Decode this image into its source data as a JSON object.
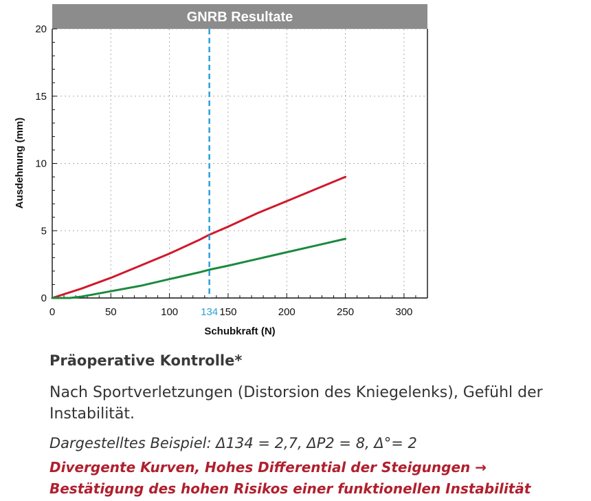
{
  "chart_data": {
    "type": "line",
    "title": "GNRB Resultate",
    "xlabel": "Schubkraft (N)",
    "ylabel": "Ausdehnung (mm)",
    "xlim": [
      0,
      320
    ],
    "ylim": [
      0,
      20
    ],
    "xticks": [
      0,
      50,
      100,
      150,
      200,
      250,
      300
    ],
    "yticks": [
      0,
      5,
      10,
      15,
      20
    ],
    "grid": true,
    "marker_line": {
      "x": 134,
      "label": "134",
      "color": "#2a9fd6"
    },
    "series": [
      {
        "color": "#d0192c",
        "x": [
          0,
          25,
          50,
          75,
          100,
          125,
          134,
          150,
          175,
          200,
          225,
          250
        ],
        "y": [
          0,
          0.7,
          1.5,
          2.4,
          3.3,
          4.3,
          4.7,
          5.3,
          6.3,
          7.2,
          8.1,
          9.0
        ]
      },
      {
        "color": "#1a8a3c",
        "x": [
          0,
          15,
          25,
          50,
          75,
          100,
          125,
          134,
          150,
          175,
          200,
          225,
          250
        ],
        "y": [
          0,
          0.0,
          0.1,
          0.5,
          0.9,
          1.4,
          1.9,
          2.1,
          2.4,
          2.9,
          3.4,
          3.9,
          4.4
        ]
      }
    ]
  },
  "text": {
    "heading": "Präoperative Kontrolle*",
    "description": "Nach Sportverletzungen (Distorsion des Kniegelenks), Gefühl der Instabilität.",
    "example": "Dargestelltes Beispiel: Δ134 = 2,7, ΔP2 = 8, Δ°= 2",
    "conclusion": "Divergente Kurven, Hohes Differential der Steigungen → Bestätigung des hohen Risikos einer funktionellen Instabilität"
  },
  "colors": {
    "title_bar": "#8c8c8c",
    "conclusion": "#b0202e"
  }
}
